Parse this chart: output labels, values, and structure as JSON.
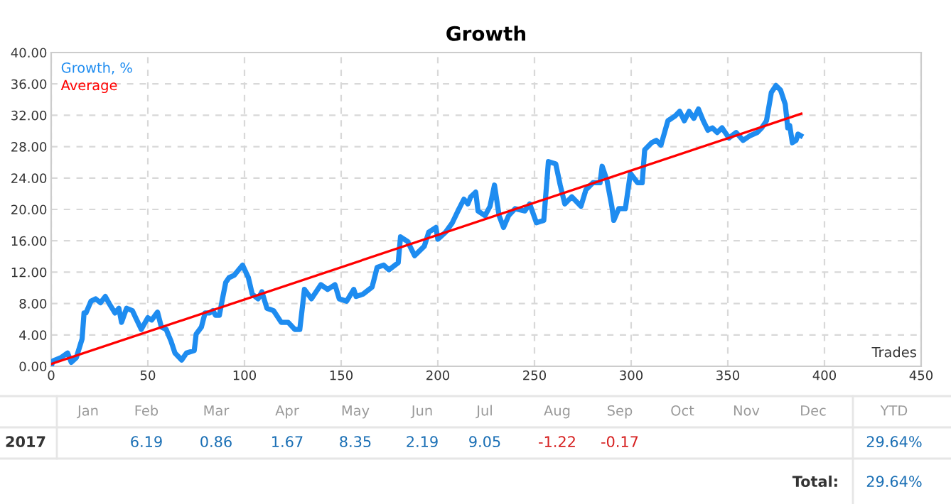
{
  "chart_data": {
    "type": "line",
    "title": "Growth",
    "xlabel": "Trades",
    "xlim": [
      0,
      450
    ],
    "xticks": [
      0,
      50,
      100,
      150,
      200,
      250,
      300,
      350,
      400,
      450
    ],
    "ylim": [
      0,
      40
    ],
    "yticks": [
      {
        "value": 0,
        "label": "0.00"
      },
      {
        "value": 4,
        "label": "4.00"
      },
      {
        "value": 8,
        "label": "8.00"
      },
      {
        "value": 12,
        "label": "12.00"
      },
      {
        "value": 16,
        "label": "16.00"
      },
      {
        "value": 20,
        "label": "20.00"
      },
      {
        "value": 24,
        "label": "24.00"
      },
      {
        "value": 28,
        "label": "28.00"
      },
      {
        "value": 32,
        "label": "32.00"
      },
      {
        "value": 36,
        "label": "36.00"
      },
      {
        "value": 40,
        "label": "40.00"
      }
    ],
    "grid": true,
    "legend": "top left",
    "line_style": "solid",
    "marker": "none",
    "series": [
      {
        "name": "Growth, %",
        "color": "#1e8cf0",
        "x": [
          0,
          1,
          5,
          8.5,
          10.4,
          13,
          16,
          17,
          18,
          20.6,
          23,
          25.5,
          28,
          30,
          33,
          35,
          36.4,
          39,
          42,
          43.7,
          46.6,
          50,
          52,
          55,
          57,
          59.5,
          62,
          64,
          67.5,
          70,
          74,
          75,
          77.7,
          79.6,
          82,
          83.7,
          85,
          87,
          88.6,
          90.3,
          92,
          94.7,
          97,
          99,
          102,
          104,
          107,
          109,
          111.6,
          115,
          119,
          122.6,
          126,
          128.6,
          131,
          134.6,
          139.5,
          143,
          146.8,
          149,
          152.8,
          156.5,
          157.7,
          161.3,
          166,
          168.6,
          172,
          174.7,
          179.5,
          180.7,
          184.4,
          188,
          193,
          195.3,
          199,
          200,
          204,
          207.5,
          211,
          213.5,
          215.5,
          217,
          219.6,
          220.8,
          224.4,
          227,
          229.3,
          231.7,
          234,
          236.6,
          240,
          245,
          247.5,
          251,
          254.8,
          257.2,
          261,
          263.3,
          265.7,
          269.3,
          274,
          276.6,
          280.2,
          283.9,
          285,
          287.5,
          290,
          291,
          293.6,
          297,
          299.6,
          303.3,
          305.7,
          307,
          310.6,
          313,
          315.4,
          319,
          322.7,
          325.1,
          327.5,
          330,
          332.4,
          334.8,
          337.3,
          339.7,
          342,
          344.5,
          347,
          350.6,
          354.3,
          357.9,
          361.5,
          365.2,
          367.6,
          370,
          372.5,
          374.9,
          377.3,
          379.7,
          381,
          382,
          383.4,
          385.3,
          386.3,
          387.7
        ],
        "values": [
          0,
          0.7,
          1.1,
          1.7,
          0.5,
          1.1,
          3.5,
          6.8,
          6.8,
          8.3,
          8.6,
          8.1,
          8.9,
          8.0,
          6.8,
          7.4,
          5.6,
          7.4,
          7.1,
          6.2,
          4.7,
          6.2,
          5.9,
          6.9,
          5.0,
          4.7,
          3.2,
          1.7,
          0.8,
          1.7,
          2.0,
          4.1,
          5.0,
          6.8,
          6.8,
          7.1,
          6.5,
          6.5,
          8.6,
          10.7,
          11.3,
          11.6,
          12.3,
          12.9,
          11.3,
          9.2,
          8.6,
          9.5,
          7.4,
          7.1,
          5.6,
          5.6,
          4.7,
          4.7,
          9.8,
          8.6,
          10.4,
          9.8,
          10.4,
          8.6,
          8.3,
          9.8,
          8.9,
          9.2,
          10.1,
          12.6,
          12.9,
          12.3,
          13.2,
          16.5,
          15.9,
          14.1,
          15.3,
          17.1,
          17.7,
          16.2,
          17.1,
          18.3,
          20.1,
          21.3,
          20.7,
          21.6,
          22.2,
          19.8,
          19.2,
          20.4,
          23.1,
          19.2,
          17.7,
          19.2,
          20.1,
          19.8,
          20.7,
          18.3,
          18.6,
          26.1,
          25.8,
          23.1,
          20.7,
          21.6,
          20.4,
          22.5,
          23.4,
          23.4,
          25.5,
          23.7,
          20.4,
          18.6,
          20.1,
          20.1,
          24.6,
          23.4,
          23.4,
          27.6,
          28.5,
          28.8,
          28.2,
          31.3,
          31.9,
          32.5,
          31.3,
          32.5,
          31.6,
          32.8,
          31.3,
          30.1,
          30.4,
          29.8,
          30.4,
          29.1,
          29.8,
          28.8,
          29.4,
          29.8,
          30.4,
          31.3,
          34.9,
          35.8,
          35.2,
          33.4,
          30.4,
          30.7,
          28.5,
          28.8,
          29.6,
          29.4
        ]
      },
      {
        "name": "Average",
        "color": "#ff0000",
        "x": [
          0,
          388
        ],
        "values": [
          0.3,
          32.2
        ]
      }
    ],
    "annotations": [
      "Jan",
      "Feb",
      "Mar",
      "Apr",
      "May",
      "Jun",
      "Jul",
      "Aug",
      "Sep",
      "Oct",
      "Nov",
      "Dec",
      "YTD",
      "2017",
      "6.19",
      "0.86",
      "1.67",
      "8.35",
      "2.19",
      "9.05",
      "-1.22",
      "-0.17",
      "29.64%",
      "Total:",
      "29.64%"
    ]
  }
}
